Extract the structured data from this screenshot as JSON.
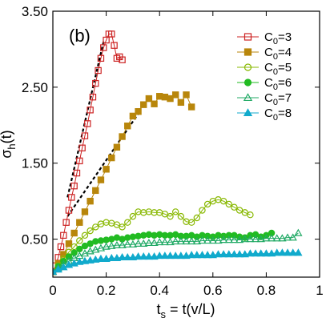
{
  "chart_data": {
    "type": "scatter",
    "annotation": "(b)",
    "xlabel": "t",
    "xlabel_sub": "s",
    "xlabel_rest": " = t(v/L)",
    "ylabel": "σ",
    "ylabel_sub": "h",
    "ylabel_rest": "(t)",
    "xlim": [
      0,
      1.0
    ],
    "ylim": [
      0,
      3.5
    ],
    "xticks": [
      {
        "v": 0,
        "label": "0"
      },
      {
        "v": 0.2,
        "label": "0.2"
      },
      {
        "v": 0.4,
        "label": "0.4"
      },
      {
        "v": 0.6,
        "label": "0.6"
      },
      {
        "v": 0.8,
        "label": "0.8"
      },
      {
        "v": 1.0,
        "label": "1"
      }
    ],
    "yticks": [
      {
        "v": 0.5,
        "label": "0.50"
      },
      {
        "v": 1.5,
        "label": "1.50"
      },
      {
        "v": 2.5,
        "label": "2.50"
      },
      {
        "v": 3.5,
        "label": "3.50"
      }
    ],
    "legend_position": "top-right",
    "guide_lines": [
      {
        "x": [
          0.055,
          0.19
        ],
        "y": [
          1.05,
          3.1
        ]
      },
      {
        "x": [
          0.055,
          0.32
        ],
        "y": [
          0.8,
          2.15
        ]
      }
    ],
    "series": [
      {
        "name": "C",
        "name_sub": "0",
        "name_rest": "=3",
        "color": "#cc2222",
        "marker": "square-open",
        "x": [
          0.0,
          0.01,
          0.02,
          0.03,
          0.04,
          0.05,
          0.06,
          0.07,
          0.08,
          0.09,
          0.1,
          0.11,
          0.12,
          0.13,
          0.14,
          0.15,
          0.16,
          0.17,
          0.18,
          0.19,
          0.2,
          0.21,
          0.22,
          0.23,
          0.24,
          0.25,
          0.26
        ],
        "y": [
          0.07,
          0.15,
          0.26,
          0.4,
          0.55,
          0.72,
          0.88,
          1.05,
          1.2,
          1.37,
          1.53,
          1.7,
          1.86,
          2.02,
          2.2,
          2.37,
          2.55,
          2.72,
          2.88,
          3.02,
          3.12,
          3.2,
          3.2,
          3.05,
          2.88,
          2.9,
          2.86
        ]
      },
      {
        "name": "C",
        "name_sub": "0",
        "name_rest": "=4",
        "color": "#b8860b",
        "marker": "square",
        "x": [
          0.0,
          0.02,
          0.04,
          0.06,
          0.08,
          0.1,
          0.12,
          0.14,
          0.16,
          0.18,
          0.2,
          0.22,
          0.24,
          0.26,
          0.28,
          0.3,
          0.32,
          0.34,
          0.36,
          0.38,
          0.4,
          0.42,
          0.44,
          0.46,
          0.48,
          0.5,
          0.52
        ],
        "y": [
          0.07,
          0.18,
          0.3,
          0.44,
          0.58,
          0.72,
          0.86,
          1.0,
          1.14,
          1.28,
          1.42,
          1.57,
          1.71,
          1.85,
          1.99,
          2.12,
          2.18,
          2.27,
          2.35,
          2.28,
          2.38,
          2.37,
          2.35,
          2.4,
          2.3,
          2.4,
          2.24
        ]
      },
      {
        "name": "C",
        "name_sub": "0",
        "name_rest": "=5",
        "color": "#88b800",
        "marker": "circle-open",
        "x": [
          0.0,
          0.02,
          0.04,
          0.06,
          0.08,
          0.1,
          0.12,
          0.14,
          0.16,
          0.18,
          0.2,
          0.22,
          0.24,
          0.26,
          0.28,
          0.3,
          0.32,
          0.34,
          0.36,
          0.38,
          0.4,
          0.42,
          0.44,
          0.46,
          0.48,
          0.5,
          0.52,
          0.54,
          0.56,
          0.58,
          0.6,
          0.62,
          0.64,
          0.66,
          0.68,
          0.7,
          0.72,
          0.74
        ],
        "y": [
          0.07,
          0.15,
          0.24,
          0.33,
          0.4,
          0.48,
          0.55,
          0.61,
          0.66,
          0.7,
          0.72,
          0.71,
          0.69,
          0.66,
          0.72,
          0.8,
          0.86,
          0.85,
          0.86,
          0.85,
          0.85,
          0.83,
          0.8,
          0.86,
          0.8,
          0.73,
          0.72,
          0.78,
          0.88,
          0.96,
          1.0,
          1.02,
          1.0,
          0.96,
          0.92,
          0.88,
          0.85,
          0.82
        ]
      },
      {
        "name": "C",
        "name_sub": "0",
        "name_rest": "=6",
        "color": "#22bb22",
        "marker": "circle",
        "x": [
          0.0,
          0.02,
          0.04,
          0.06,
          0.08,
          0.1,
          0.12,
          0.14,
          0.16,
          0.18,
          0.2,
          0.22,
          0.24,
          0.26,
          0.28,
          0.3,
          0.32,
          0.34,
          0.36,
          0.38,
          0.4,
          0.42,
          0.44,
          0.46,
          0.48,
          0.5,
          0.52,
          0.54,
          0.56,
          0.58,
          0.6,
          0.62,
          0.64,
          0.66,
          0.68,
          0.7,
          0.72,
          0.74,
          0.76,
          0.78,
          0.8,
          0.82
        ],
        "y": [
          0.07,
          0.14,
          0.21,
          0.27,
          0.32,
          0.37,
          0.41,
          0.44,
          0.47,
          0.48,
          0.49,
          0.5,
          0.52,
          0.5,
          0.52,
          0.53,
          0.54,
          0.55,
          0.56,
          0.55,
          0.56,
          0.55,
          0.55,
          0.56,
          0.54,
          0.54,
          0.55,
          0.53,
          0.55,
          0.54,
          0.53,
          0.55,
          0.54,
          0.55,
          0.55,
          0.53,
          0.52,
          0.55,
          0.56,
          0.53,
          0.55,
          0.58
        ]
      },
      {
        "name": "C",
        "name_sub": "0",
        "name_rest": "=7",
        "color": "#22aa66",
        "marker": "triangle-open",
        "x": [
          0.0,
          0.02,
          0.04,
          0.06,
          0.08,
          0.1,
          0.12,
          0.14,
          0.16,
          0.18,
          0.2,
          0.22,
          0.24,
          0.26,
          0.28,
          0.3,
          0.32,
          0.34,
          0.36,
          0.38,
          0.4,
          0.42,
          0.44,
          0.46,
          0.48,
          0.5,
          0.52,
          0.54,
          0.56,
          0.58,
          0.6,
          0.62,
          0.64,
          0.66,
          0.68,
          0.7,
          0.72,
          0.74,
          0.76,
          0.78,
          0.8,
          0.82,
          0.84,
          0.86,
          0.88,
          0.9,
          0.92
        ],
        "y": [
          0.07,
          0.12,
          0.17,
          0.21,
          0.25,
          0.28,
          0.31,
          0.34,
          0.36,
          0.38,
          0.4,
          0.41,
          0.42,
          0.42,
          0.43,
          0.43,
          0.44,
          0.44,
          0.45,
          0.45,
          0.46,
          0.46,
          0.46,
          0.47,
          0.47,
          0.47,
          0.47,
          0.47,
          0.48,
          0.48,
          0.48,
          0.48,
          0.49,
          0.49,
          0.49,
          0.49,
          0.5,
          0.5,
          0.5,
          0.5,
          0.51,
          0.51,
          0.51,
          0.51,
          0.52,
          0.52,
          0.58
        ]
      },
      {
        "name": "C",
        "name_sub": "0",
        "name_rest": "=8",
        "color": "#11aacc",
        "marker": "triangle",
        "x": [
          0.0,
          0.02,
          0.04,
          0.06,
          0.08,
          0.1,
          0.12,
          0.14,
          0.16,
          0.18,
          0.2,
          0.22,
          0.24,
          0.26,
          0.28,
          0.3,
          0.32,
          0.34,
          0.36,
          0.38,
          0.4,
          0.42,
          0.44,
          0.46,
          0.48,
          0.5,
          0.52,
          0.54,
          0.56,
          0.58,
          0.6,
          0.62,
          0.64,
          0.66,
          0.68,
          0.7,
          0.72,
          0.74,
          0.76,
          0.78,
          0.8,
          0.82,
          0.84,
          0.86,
          0.88,
          0.9,
          0.92
        ],
        "y": [
          0.07,
          0.1,
          0.13,
          0.16,
          0.18,
          0.2,
          0.21,
          0.22,
          0.23,
          0.24,
          0.24,
          0.25,
          0.25,
          0.26,
          0.26,
          0.26,
          0.27,
          0.27,
          0.27,
          0.27,
          0.28,
          0.28,
          0.28,
          0.28,
          0.28,
          0.28,
          0.29,
          0.29,
          0.29,
          0.29,
          0.29,
          0.3,
          0.3,
          0.3,
          0.3,
          0.3,
          0.3,
          0.31,
          0.31,
          0.31,
          0.31,
          0.31,
          0.32,
          0.32,
          0.32,
          0.32,
          0.32
        ]
      }
    ]
  }
}
